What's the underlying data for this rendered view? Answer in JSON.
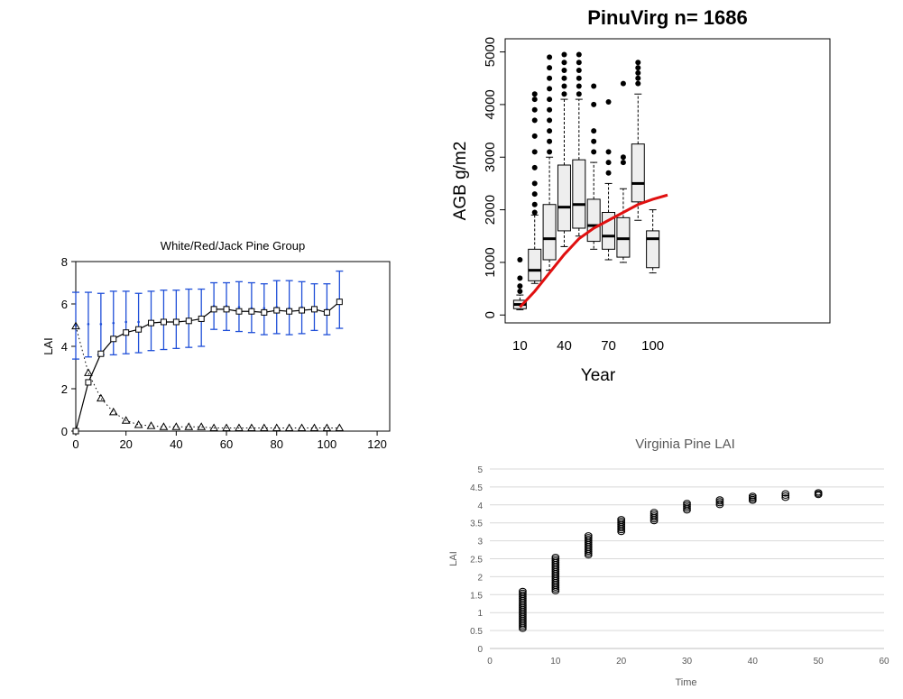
{
  "colors": {
    "ink": "#000000",
    "errorbar_blue": "#1f4fd8",
    "box_fill": "#eeeeee",
    "trend_red": "#e01010",
    "excel_grid": "#d9d9d9",
    "excel_text": "#595959"
  },
  "chart_data": [
    {
      "type": "line",
      "title": "White/Red/Jack Pine Group",
      "xlabel": "",
      "ylabel": "LAI",
      "xlim": [
        0,
        125
      ],
      "ylim": [
        0,
        8
      ],
      "xticks": [
        0,
        20,
        40,
        60,
        80,
        100,
        120
      ],
      "yticks": [
        0,
        2,
        4,
        6,
        8
      ],
      "grid": false,
      "series": [
        {
          "marker": "square",
          "line": "solid",
          "x": [
            0,
            5,
            10,
            15,
            20,
            25,
            30,
            35,
            40,
            45,
            50,
            55,
            60,
            65,
            70,
            75,
            80,
            85,
            90,
            95,
            100,
            105
          ],
          "values": [
            0,
            2.3,
            3.65,
            4.35,
            4.65,
            4.8,
            5.1,
            5.15,
            5.15,
            5.2,
            5.3,
            5.75,
            5.75,
            5.65,
            5.65,
            5.6,
            5.7,
            5.65,
            5.7,
            5.75,
            5.6,
            6.1
          ]
        },
        {
          "marker": "triangle",
          "line": "dotted",
          "x": [
            0,
            5,
            10,
            15,
            20,
            25,
            30,
            35,
            40,
            45,
            50,
            55,
            60,
            65,
            70,
            75,
            80,
            85,
            90,
            95,
            100,
            105
          ],
          "values": [
            4.95,
            2.75,
            1.55,
            0.9,
            0.5,
            0.3,
            0.25,
            0.2,
            0.2,
            0.2,
            0.2,
            0.15,
            0.15,
            0.15,
            0.15,
            0.15,
            0.15,
            0.15,
            0.15,
            0.15,
            0.15,
            0.15
          ]
        },
        {
          "marker": "errorbar",
          "line": "none",
          "x": [
            0,
            5,
            10,
            15,
            20,
            25,
            30,
            35,
            40,
            45,
            50,
            55,
            60,
            65,
            70,
            75,
            80,
            85,
            90,
            95,
            100,
            105
          ],
          "low": [
            3.4,
            3.5,
            3.6,
            3.6,
            3.65,
            3.7,
            3.8,
            3.85,
            3.9,
            3.95,
            4.0,
            4.8,
            4.75,
            4.7,
            4.65,
            4.55,
            4.6,
            4.55,
            4.6,
            4.75,
            4.55,
            4.85
          ],
          "mid": [
            5.0,
            5.05,
            5.05,
            5.1,
            5.15,
            5.15,
            5.2,
            5.25,
            5.25,
            5.3,
            5.35,
            5.9,
            5.9,
            5.85,
            5.8,
            5.8,
            5.85,
            5.8,
            5.85,
            5.85,
            5.75,
            6.2
          ],
          "high": [
            6.55,
            6.55,
            6.5,
            6.6,
            6.6,
            6.5,
            6.6,
            6.65,
            6.65,
            6.7,
            6.7,
            7.0,
            7.0,
            7.05,
            7.0,
            6.95,
            7.1,
            7.1,
            7.05,
            6.95,
            6.95,
            7.55
          ]
        }
      ]
    },
    {
      "type": "box",
      "title": "PinuVirg n= 1686",
      "xlabel": "Year",
      "ylabel": "AGB g/m2",
      "xlim": [
        0,
        220
      ],
      "ylim": [
        -150,
        5250
      ],
      "xticks": [
        10,
        40,
        70,
        100
      ],
      "yticks": [
        0,
        1000,
        2000,
        3000,
        4000,
        5000
      ],
      "grid": false,
      "boxes": [
        {
          "x": 10,
          "min": 100,
          "q1": 120,
          "median": 200,
          "q3": 280,
          "max": 380,
          "outliers": [
            450,
            550,
            700,
            1050
          ]
        },
        {
          "x": 20,
          "min": 600,
          "q1": 650,
          "median": 850,
          "q3": 1250,
          "max": 1900,
          "outliers": [
            1950,
            2100,
            2300,
            2500,
            2800,
            3100,
            3400,
            3700,
            3900,
            4100,
            4200
          ]
        },
        {
          "x": 30,
          "min": 850,
          "q1": 1050,
          "median": 1450,
          "q3": 2100,
          "max": 3000,
          "outliers": [
            3100,
            3300,
            3500,
            3700,
            3900,
            4100,
            4300,
            4500,
            4700,
            4900
          ]
        },
        {
          "x": 40,
          "min": 1300,
          "q1": 1600,
          "median": 2050,
          "q3": 2850,
          "max": 4100,
          "outliers": [
            4200,
            4350,
            4500,
            4650,
            4800,
            4950
          ]
        },
        {
          "x": 50,
          "min": 1500,
          "q1": 1650,
          "median": 2100,
          "q3": 2950,
          "max": 4100,
          "outliers": [
            4200,
            4350,
            4500,
            4650,
            4800,
            4950
          ]
        },
        {
          "x": 60,
          "min": 1250,
          "q1": 1400,
          "median": 1700,
          "q3": 2200,
          "max": 2900,
          "outliers": [
            3100,
            3300,
            3500,
            4000,
            4350
          ]
        },
        {
          "x": 70,
          "min": 1050,
          "q1": 1250,
          "median": 1500,
          "q3": 1950,
          "max": 2500,
          "outliers": [
            2700,
            2900,
            3100,
            4050
          ]
        },
        {
          "x": 80,
          "min": 1000,
          "q1": 1100,
          "median": 1450,
          "q3": 1850,
          "max": 2400,
          "outliers": [
            2900,
            3000,
            4400
          ]
        },
        {
          "x": 90,
          "min": 1800,
          "q1": 2150,
          "median": 2500,
          "q3": 3250,
          "max": 4200,
          "outliers": [
            4400,
            4500,
            4600,
            4700,
            4800
          ]
        },
        {
          "x": 100,
          "min": 800,
          "q1": 900,
          "median": 1450,
          "q3": 1600,
          "max": 2000,
          "outliers": []
        }
      ],
      "trend": {
        "x": [
          10,
          20,
          30,
          40,
          50,
          60,
          70,
          80,
          90,
          100,
          110
        ],
        "values": [
          150,
          450,
          800,
          1150,
          1450,
          1650,
          1800,
          1950,
          2100,
          2200,
          2280
        ]
      }
    },
    {
      "type": "scatter",
      "title": "Virginia Pine LAI",
      "xlabel": "Time",
      "ylabel": "LAI",
      "xlim": [
        0,
        60
      ],
      "ylim": [
        0,
        5
      ],
      "xticks": [
        0,
        10,
        20,
        30,
        40,
        50,
        60
      ],
      "yticks": [
        "0",
        "0.5",
        "1",
        "1.5",
        "2",
        "2.5",
        "3",
        "3.5",
        "4",
        "4.5",
        "5"
      ],
      "grid": true,
      "clusters": [
        {
          "x": 5,
          "low": 0.55,
          "high": 1.6
        },
        {
          "x": 10,
          "low": 1.6,
          "high": 2.55
        },
        {
          "x": 15,
          "low": 2.6,
          "high": 3.15
        },
        {
          "x": 20,
          "low": 3.25,
          "high": 3.6
        },
        {
          "x": 25,
          "low": 3.55,
          "high": 3.8
        },
        {
          "x": 30,
          "low": 3.85,
          "high": 4.05
        },
        {
          "x": 35,
          "low": 4.0,
          "high": 4.15
        },
        {
          "x": 40,
          "low": 4.12,
          "high": 4.25
        },
        {
          "x": 45,
          "low": 4.2,
          "high": 4.32
        },
        {
          "x": 50,
          "low": 4.28,
          "high": 4.35
        }
      ]
    }
  ]
}
